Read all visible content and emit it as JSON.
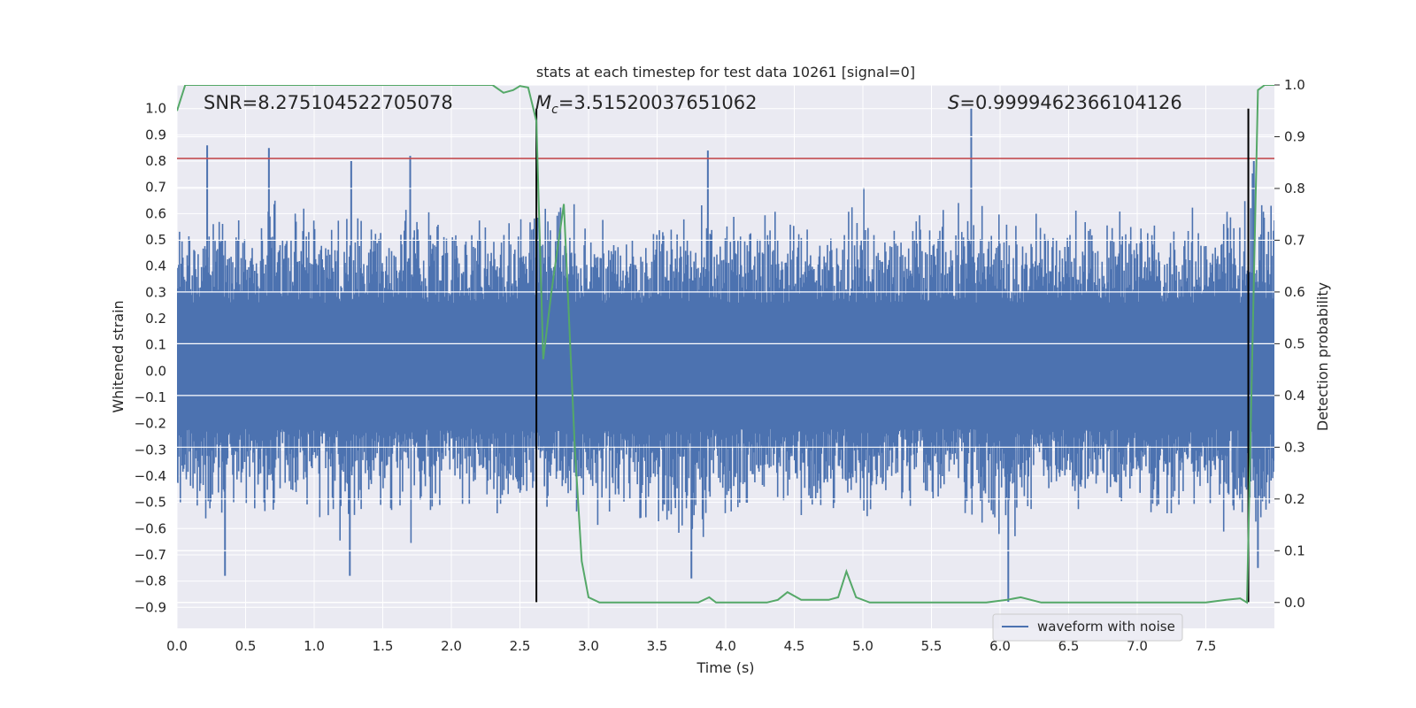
{
  "chart_data": {
    "type": "line",
    "title": "stats at each timestep for test data 10261 [signal=0]",
    "xlabel": "Time (s)",
    "ylabel": "Whitened strain",
    "y2label": "Detection probability",
    "xlim": [
      0.0,
      8.0
    ],
    "ylim": [
      -0.98,
      1.09
    ],
    "y2lim": [
      -0.05,
      1.0
    ],
    "xticks": [
      0.0,
      0.5,
      1.0,
      1.5,
      2.0,
      2.5,
      3.0,
      3.5,
      4.0,
      4.5,
      5.0,
      5.5,
      6.0,
      6.5,
      7.0,
      7.5
    ],
    "xtick_labels": [
      "0.0",
      "0.5",
      "1.0",
      "1.5",
      "2.0",
      "2.5",
      "3.0",
      "3.5",
      "4.0",
      "4.5",
      "5.0",
      "5.5",
      "6.0",
      "6.5",
      "7.0",
      "7.5"
    ],
    "yticks": [
      -0.9,
      -0.8,
      -0.7,
      -0.6,
      -0.5,
      -0.4,
      -0.3,
      -0.2,
      -0.1,
      0.0,
      0.1,
      0.2,
      0.3,
      0.4,
      0.5,
      0.6,
      0.7,
      0.8,
      0.9,
      1.0
    ],
    "ytick_labels": [
      "−0.9",
      "−0.8",
      "−0.7",
      "−0.6",
      "−0.5",
      "−0.4",
      "−0.3",
      "−0.2",
      "−0.1",
      "0.0",
      "0.1",
      "0.2",
      "0.3",
      "0.4",
      "0.5",
      "0.6",
      "0.7",
      "0.8",
      "0.9",
      "1.0"
    ],
    "y2ticks": [
      0.0,
      0.1,
      0.2,
      0.3,
      0.4,
      0.5,
      0.6,
      0.7,
      0.8,
      0.9,
      1.0
    ],
    "y2tick_labels": [
      "0.0",
      "0.1",
      "0.2",
      "0.3",
      "0.4",
      "0.5",
      "0.6",
      "0.7",
      "0.8",
      "0.9",
      "1.0"
    ],
    "legend": {
      "entries": [
        "waveform with noise"
      ],
      "location": "lower-right"
    },
    "annotations": {
      "snr": "SNR=8.275104522705078",
      "mc_symbol": "M",
      "mc_sub": "c",
      "mc_value": "=3.51520037651062",
      "s_symbol": "S",
      "s_value": "=0.9999462366104126"
    },
    "threshold_line": {
      "y": 0.81,
      "color": "#c44e52"
    },
    "vertical_lines": [
      2.62,
      7.81
    ],
    "series": [
      {
        "name": "waveform with noise",
        "color": "#4c72b0",
        "description": "noise envelope",
        "x": [
          0.0,
          0.25,
          0.5,
          0.75,
          1.0,
          1.25,
          1.5,
          1.75,
          2.0,
          2.25,
          2.5,
          2.75,
          3.0,
          3.25,
          3.5,
          3.75,
          4.0,
          4.25,
          4.5,
          4.75,
          5.0,
          5.25,
          5.5,
          5.75,
          6.0,
          6.25,
          6.5,
          6.75,
          7.0,
          7.25,
          7.5,
          7.75,
          8.0
        ],
        "upper": [
          0.5,
          0.55,
          0.5,
          0.6,
          0.5,
          0.55,
          0.5,
          0.55,
          0.5,
          0.5,
          0.52,
          0.55,
          0.5,
          0.55,
          0.5,
          0.6,
          0.55,
          0.5,
          0.55,
          0.5,
          0.55,
          0.5,
          0.55,
          0.6,
          0.55,
          0.5,
          0.55,
          0.5,
          0.55,
          0.5,
          0.55,
          0.6,
          0.55
        ],
        "lower": [
          -0.45,
          -0.5,
          -0.45,
          -0.5,
          -0.45,
          -0.5,
          -0.45,
          -0.5,
          -0.45,
          -0.45,
          -0.5,
          -0.5,
          -0.45,
          -0.5,
          -0.5,
          -0.55,
          -0.5,
          -0.45,
          -0.5,
          -0.45,
          -0.5,
          -0.45,
          -0.5,
          -0.5,
          -0.55,
          -0.45,
          -0.5,
          -0.45,
          -0.5,
          -0.5,
          -0.45,
          -0.55,
          -0.5
        ],
        "peaks": [
          [
            0.22,
            0.86
          ],
          [
            0.67,
            0.85
          ],
          [
            1.27,
            0.8
          ],
          [
            1.7,
            0.82
          ],
          [
            3.87,
            0.84
          ],
          [
            5.79,
            1.0
          ],
          [
            7.85,
            0.8
          ],
          [
            0.35,
            -0.78
          ],
          [
            1.26,
            -0.78
          ],
          [
            3.75,
            -0.79
          ],
          [
            6.06,
            -0.88
          ],
          [
            7.88,
            -0.75
          ]
        ]
      },
      {
        "name": "Detection probability",
        "color": "#55a868",
        "axis": "right",
        "x": [
          0.0,
          0.06,
          0.2,
          0.5,
          1.0,
          1.5,
          2.0,
          2.3,
          2.38,
          2.45,
          2.5,
          2.56,
          2.62,
          2.67,
          2.73,
          2.82,
          2.9,
          2.95,
          3.0,
          3.08,
          3.3,
          3.6,
          3.8,
          3.88,
          3.93,
          4.05,
          4.2,
          4.3,
          4.38,
          4.45,
          4.55,
          4.75,
          4.82,
          4.88,
          4.95,
          5.05,
          5.3,
          5.6,
          5.9,
          6.05,
          6.15,
          6.3,
          6.6,
          6.9,
          7.2,
          7.5,
          7.65,
          7.75,
          7.8,
          7.88,
          7.93,
          8.0
        ],
        "values": [
          0.95,
          1.0,
          1.0,
          1.0,
          1.0,
          1.0,
          1.0,
          1.0,
          0.985,
          0.99,
          0.998,
          0.995,
          0.93,
          0.47,
          0.6,
          0.77,
          0.3,
          0.08,
          0.01,
          0.0,
          0.0,
          0.0,
          0.0,
          0.01,
          0.0,
          0.0,
          0.0,
          0.0,
          0.005,
          0.02,
          0.005,
          0.005,
          0.01,
          0.06,
          0.01,
          0.0,
          0.0,
          0.0,
          0.0,
          0.005,
          0.01,
          0.0,
          0.0,
          0.0,
          0.0,
          0.0,
          0.005,
          0.008,
          0.0,
          0.99,
          1.0,
          1.0
        ]
      }
    ]
  }
}
